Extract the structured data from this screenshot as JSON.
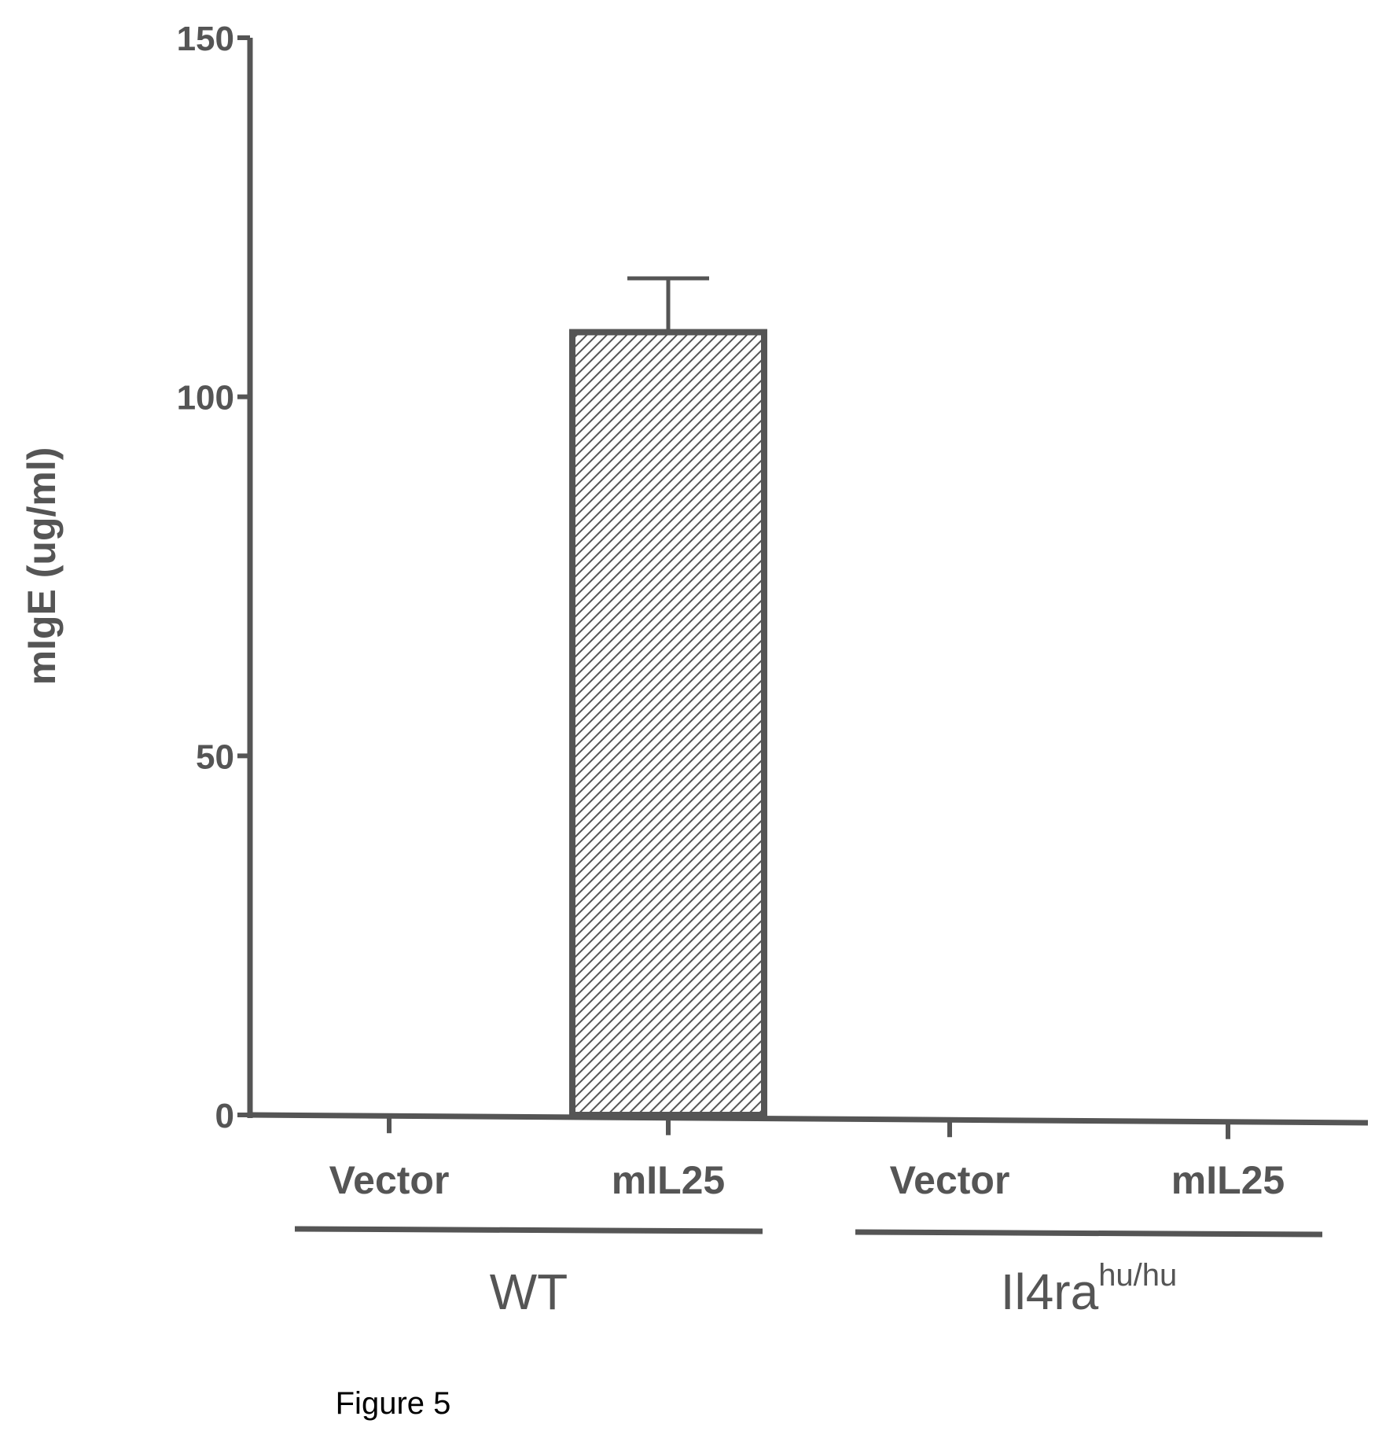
{
  "chart_data": {
    "type": "bar",
    "ylabel": "mIgE (ug/ml)",
    "ylim": [
      0,
      150
    ],
    "yticks": [
      0,
      50,
      100,
      150
    ],
    "ytick_labels": [
      "0",
      "50",
      "100",
      "150"
    ],
    "categories": [
      "Vector",
      "mIL25",
      "Vector",
      "mIL25"
    ],
    "values": [
      0,
      109,
      0,
      0
    ],
    "errors": [
      0,
      7.5,
      0,
      0
    ],
    "groups": [
      {
        "label": "WT",
        "superscript": "",
        "categories": [
          0,
          1
        ]
      },
      {
        "label": "Il4ra",
        "superscript": "hu/hu",
        "categories": [
          2,
          3
        ]
      }
    ],
    "grid": false,
    "colors": {
      "axis": "#555555",
      "bar_fill_hatch": "#555555",
      "bar_background": "#ffffff"
    }
  },
  "caption": "Figure 5"
}
